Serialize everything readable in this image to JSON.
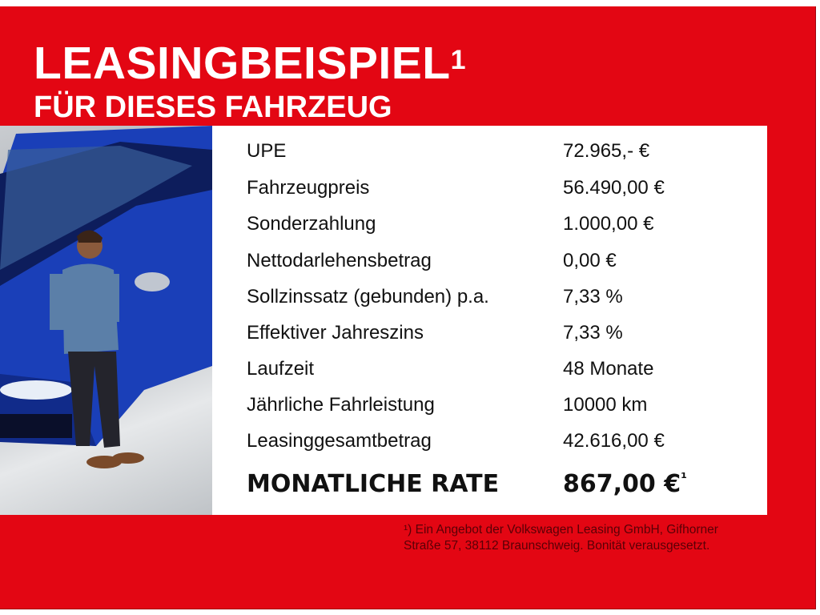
{
  "header": {
    "title": "LEASINGBEISPIEL",
    "title_superscript": "1",
    "subtitle": "FÜR DIESES FAHRZEUG"
  },
  "offer": {
    "rows": [
      {
        "label": "UPE",
        "value": "72.965,- €"
      },
      {
        "label": "Fahrzeugpreis",
        "value": "56.490,00 €"
      },
      {
        "label": "Sonderzahlung",
        "value": "1.000,00 €"
      },
      {
        "label": "Nettodarlehensbetrag",
        "value": "0,00 €"
      },
      {
        "label": "Sollzinssatz (gebunden) p.a.",
        "value": "7,33 %"
      },
      {
        "label": "Effektiver Jahreszins",
        "value": "7,33 %"
      },
      {
        "label": "Laufzeit",
        "value": "48 Monate"
      },
      {
        "label": "Jährliche Fahrleistung",
        "value": "10000 km"
      },
      {
        "label": "Leasinggesamtbetrag",
        "value": "42.616,00 €"
      }
    ],
    "total": {
      "label": "MONATLICHE RATE",
      "value": "867,00 €",
      "superscript": "¹"
    }
  },
  "footnote": {
    "line1": "¹) Ein Angebot der Volkswagen Leasing GmbH, Gifhorner",
    "line2": "Straße 57, 38112 Braunschweig. Bonität verausgesetzt."
  },
  "colors": {
    "brand_red": "#e30613",
    "car_blue": "#1a3fb8"
  }
}
